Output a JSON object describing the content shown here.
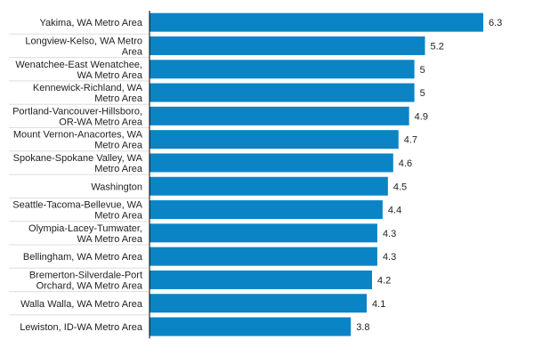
{
  "chart_data": {
    "type": "bar",
    "orientation": "horizontal",
    "title": "",
    "xlabel": "",
    "ylabel": "",
    "categories": [
      [
        "Yakima, WA Metro Area"
      ],
      [
        "Longview-Kelso, WA Metro",
        "Area"
      ],
      [
        "Wenatchee-East Wenatchee,",
        "WA Metro Area"
      ],
      [
        "Kennewick-Richland, WA",
        "Metro Area"
      ],
      [
        "Portland-Vancouver-Hillsboro,",
        "OR-WA Metro Area"
      ],
      [
        "Mount Vernon-Anacortes, WA",
        "Metro Area"
      ],
      [
        "Spokane-Spokane Valley, WA",
        "Metro Area"
      ],
      [
        "Washington"
      ],
      [
        "Seattle-Tacoma-Bellevue, WA",
        "Metro Area"
      ],
      [
        "Olympia-Lacey-Tumwater,",
        "WA Metro Area"
      ],
      [
        "Bellingham, WA Metro Area"
      ],
      [
        "Bremerton-Silverdale-Port",
        "Orchard, WA Metro Area"
      ],
      [
        "Walla Walla, WA Metro Area"
      ],
      [
        "Lewiston, ID-WA Metro Area"
      ]
    ],
    "values": [
      6.3,
      5.2,
      5,
      5,
      4.9,
      4.7,
      4.6,
      4.5,
      4.4,
      4.3,
      4.3,
      4.2,
      4.1,
      3.8
    ],
    "value_labels": [
      "6.3",
      "5.2",
      "5",
      "5",
      "4.9",
      "4.7",
      "4.6",
      "4.5",
      "4.4",
      "4.3",
      "4.3",
      "4.2",
      "4.1",
      "3.8"
    ],
    "xlim": [
      0,
      6.3
    ],
    "bar_color": "#0b84c6",
    "separator_color": "#dddddd",
    "axis_color": "#000000",
    "grid": false,
    "legend": "none"
  }
}
